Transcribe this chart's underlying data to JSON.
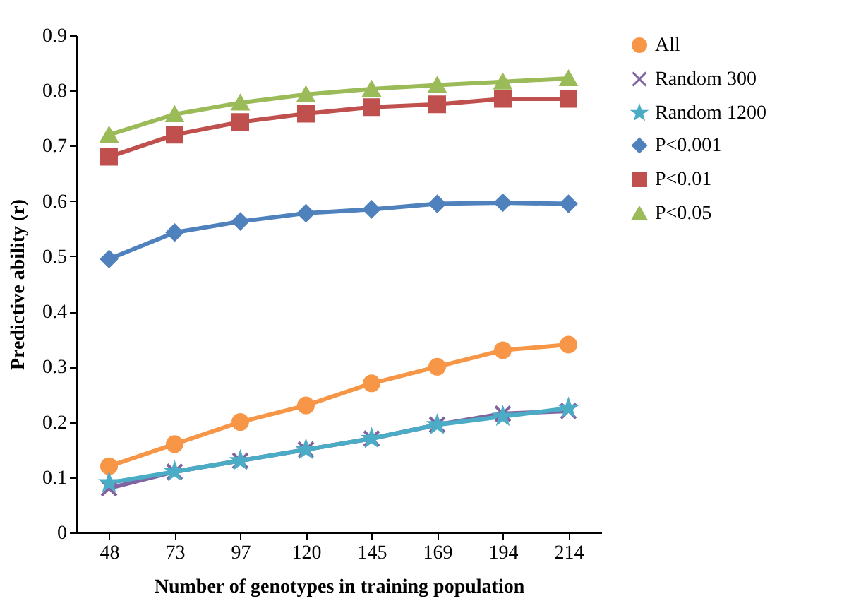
{
  "chart_data": {
    "type": "line",
    "xlabel": "Number of genotypes in training population",
    "ylabel": "Predictive ability (r)",
    "categories": [
      "48",
      "73",
      "97",
      "120",
      "145",
      "169",
      "194",
      "214"
    ],
    "ylim": [
      0,
      0.9
    ],
    "yticks": [
      0,
      0.1,
      0.2,
      0.3,
      0.4,
      0.5,
      0.6,
      0.7,
      0.8,
      0.9
    ],
    "grid": false,
    "legend": "right",
    "series": [
      {
        "name": "All",
        "color": "#f79646",
        "marker": "circle",
        "values": [
          0.12,
          0.16,
          0.2,
          0.23,
          0.27,
          0.3,
          0.33,
          0.34
        ]
      },
      {
        "name": "Random 300",
        "color": "#8064a2",
        "marker": "cross",
        "values": [
          0.08,
          0.11,
          0.13,
          0.15,
          0.17,
          0.195,
          0.215,
          0.22
        ]
      },
      {
        "name": "Random 1200",
        "color": "#4bacc6",
        "marker": "star",
        "values": [
          0.09,
          0.11,
          0.13,
          0.15,
          0.17,
          0.195,
          0.21,
          0.225
        ]
      },
      {
        "name": "P<0.001",
        "color": "#4f81bd",
        "marker": "diamond",
        "values": [
          0.495,
          0.543,
          0.563,
          0.578,
          0.585,
          0.595,
          0.597,
          0.595
        ]
      },
      {
        "name": "P<0.01",
        "color": "#c0504d",
        "marker": "square",
        "values": [
          0.68,
          0.72,
          0.743,
          0.758,
          0.77,
          0.775,
          0.785,
          0.785
        ]
      },
      {
        "name": "P<0.05",
        "color": "#9bbb59",
        "marker": "triangle",
        "values": [
          0.72,
          0.757,
          0.778,
          0.793,
          0.803,
          0.81,
          0.816,
          0.822
        ]
      }
    ]
  }
}
